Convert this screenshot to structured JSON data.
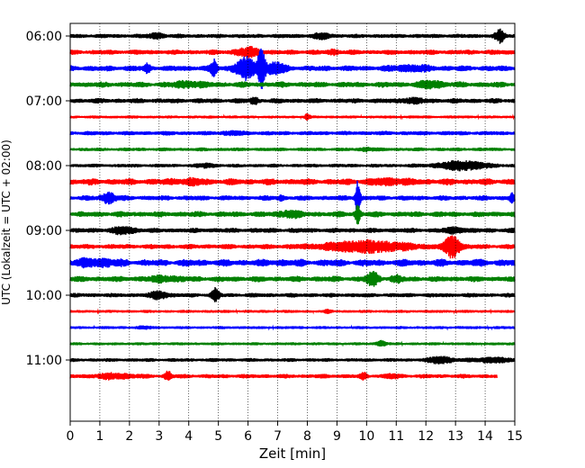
{
  "chart_data": {
    "type": "line",
    "title": "",
    "xlabel": "Zeit  [min]",
    "ylabel": "UTC (Lokalzeit = UTC + 02:00)",
    "xlim": [
      0,
      15
    ],
    "x_ticks": [
      0,
      1,
      2,
      3,
      4,
      5,
      6,
      7,
      8,
      9,
      10,
      11,
      12,
      13,
      14,
      15
    ],
    "x_tick_labels": [
      "0",
      "1",
      "2",
      "3",
      "4",
      "5",
      "6",
      "7",
      "8",
      "9",
      "10",
      "11",
      "12",
      "13",
      "14",
      "15"
    ],
    "y_tick_labels": [
      "06:00",
      "07:00",
      "08:00",
      "09:00",
      "10:00",
      "11:00"
    ],
    "line_minutes": 15,
    "grid": "vertical dotted",
    "colors": [
      "#000000",
      "#ff0000",
      "#0000ff",
      "#008000"
    ],
    "series": [
      {
        "start": "05:45",
        "amp": 0.35,
        "noise": 0.25,
        "events": [
          {
            "x": 2.9,
            "amp": 0.4,
            "w": 0.25
          },
          {
            "x": 8.5,
            "amp": 0.4,
            "w": 0.3
          },
          {
            "x": 14.5,
            "amp": 1.1,
            "w": 0.15
          }
        ]
      },
      {
        "start": "06:00",
        "amp": 0.4,
        "noise": 0.3,
        "events": [
          {
            "x": 6.0,
            "amp": 0.7,
            "w": 0.4
          },
          {
            "x": 8.9,
            "amp": 0.3,
            "w": 0.2
          }
        ]
      },
      {
        "start": "06:15",
        "amp": 0.45,
        "noise": 0.35,
        "events": [
          {
            "x": 2.6,
            "amp": 0.6,
            "w": 0.1
          },
          {
            "x": 4.85,
            "amp": 1.4,
            "w": 0.1
          },
          {
            "x": 5.9,
            "amp": 1.8,
            "w": 0.35
          },
          {
            "x": 6.45,
            "amp": 3.8,
            "w": 0.12
          },
          {
            "x": 6.9,
            "amp": 1.0,
            "w": 0.3
          },
          {
            "x": 11.5,
            "amp": 0.4,
            "w": 0.6
          }
        ]
      },
      {
        "start": "06:30",
        "amp": 0.45,
        "noise": 0.35,
        "events": [
          {
            "x": 4.0,
            "amp": 0.4,
            "w": 0.5
          },
          {
            "x": 12.2,
            "amp": 0.5,
            "w": 0.4
          }
        ]
      },
      {
        "start": "06:45",
        "amp": 0.4,
        "noise": 0.3,
        "events": [
          {
            "x": 6.2,
            "amp": 0.6,
            "w": 0.12
          },
          {
            "x": 11.5,
            "amp": 0.3,
            "w": 0.4
          }
        ]
      },
      {
        "start": "07:00",
        "amp": 0.25,
        "noise": 0.2,
        "events": [
          {
            "x": 8.0,
            "amp": 0.5,
            "w": 0.08
          }
        ]
      },
      {
        "start": "07:15",
        "amp": 0.35,
        "noise": 0.25,
        "events": [
          {
            "x": 5.5,
            "amp": 0.2,
            "w": 0.4
          }
        ]
      },
      {
        "start": "07:30",
        "amp": 0.3,
        "noise": 0.25,
        "events": [
          {
            "x": 10.0,
            "amp": 0.3,
            "w": 0.2
          }
        ]
      },
      {
        "start": "07:45",
        "amp": 0.3,
        "noise": 0.25,
        "events": [
          {
            "x": 4.6,
            "amp": 0.3,
            "w": 0.3
          },
          {
            "x": 13.2,
            "amp": 0.8,
            "w": 0.8
          }
        ]
      },
      {
        "start": "08:00",
        "amp": 0.5,
        "noise": 0.4,
        "events": [
          {
            "x": 4.0,
            "amp": 0.3,
            "w": 0.6
          },
          {
            "x": 10.8,
            "amp": 0.4,
            "w": 0.6
          }
        ]
      },
      {
        "start": "08:15",
        "amp": 0.4,
        "noise": 0.35,
        "events": [
          {
            "x": 1.3,
            "amp": 0.9,
            "w": 0.25
          },
          {
            "x": 7.1,
            "amp": 0.3,
            "w": 0.1
          },
          {
            "x": 9.7,
            "amp": 3.0,
            "w": 0.08
          },
          {
            "x": 14.9,
            "amp": 0.8,
            "w": 0.08
          }
        ]
      },
      {
        "start": "08:30",
        "amp": 0.45,
        "noise": 0.35,
        "events": [
          {
            "x": 7.4,
            "amp": 0.6,
            "w": 0.3
          },
          {
            "x": 9.7,
            "amp": 1.5,
            "w": 0.08
          }
        ]
      },
      {
        "start": "08:45",
        "amp": 0.4,
        "noise": 0.3,
        "events": [
          {
            "x": 1.8,
            "amp": 0.5,
            "w": 0.4
          },
          {
            "x": 13.0,
            "amp": 0.4,
            "w": 0.3
          }
        ]
      },
      {
        "start": "09:00",
        "amp": 0.4,
        "noise": 0.3,
        "events": [
          {
            "x": 10.0,
            "amp": 0.9,
            "w": 1.5
          },
          {
            "x": 12.9,
            "amp": 2.0,
            "w": 0.25
          }
        ]
      },
      {
        "start": "09:15",
        "amp": 0.55,
        "noise": 0.45,
        "events": [
          {
            "x": 0.9,
            "amp": 0.5,
            "w": 0.6
          },
          {
            "x": 7.0,
            "amp": 0.2,
            "w": 0.2
          }
        ]
      },
      {
        "start": "09:30",
        "amp": 0.45,
        "noise": 0.35,
        "events": [
          {
            "x": 3.2,
            "amp": 0.4,
            "w": 0.5
          },
          {
            "x": 10.2,
            "amp": 1.1,
            "w": 0.2
          },
          {
            "x": 11.0,
            "amp": 0.4,
            "w": 0.2
          }
        ]
      },
      {
        "start": "09:45",
        "amp": 0.35,
        "noise": 0.25,
        "events": [
          {
            "x": 3.0,
            "amp": 0.6,
            "w": 0.3
          },
          {
            "x": 4.9,
            "amp": 1.2,
            "w": 0.12
          }
        ]
      },
      {
        "start": "10:00",
        "amp": 0.25,
        "noise": 0.2,
        "events": [
          {
            "x": 8.7,
            "amp": 0.3,
            "w": 0.1
          }
        ]
      },
      {
        "start": "10:15",
        "amp": 0.25,
        "noise": 0.2,
        "events": [
          {
            "x": 2.5,
            "amp": 0.15,
            "w": 0.3
          }
        ]
      },
      {
        "start": "10:30",
        "amp": 0.25,
        "noise": 0.2,
        "events": [
          {
            "x": 10.5,
            "amp": 0.5,
            "w": 0.15
          }
        ]
      },
      {
        "start": "10:45",
        "amp": 0.3,
        "noise": 0.25,
        "events": [
          {
            "x": 12.5,
            "amp": 0.6,
            "w": 0.4
          },
          {
            "x": 14.2,
            "amp": 0.4,
            "w": 0.6
          }
        ]
      },
      {
        "start": "11:00",
        "amp": 0.35,
        "noise": 0.3,
        "end": 14.4,
        "events": [
          {
            "x": 1.5,
            "amp": 0.4,
            "w": 0.6
          },
          {
            "x": 3.3,
            "amp": 0.8,
            "w": 0.1
          },
          {
            "x": 9.9,
            "amp": 0.5,
            "w": 0.1
          },
          {
            "x": 10.9,
            "amp": 0.3,
            "w": 0.2
          }
        ]
      }
    ]
  }
}
